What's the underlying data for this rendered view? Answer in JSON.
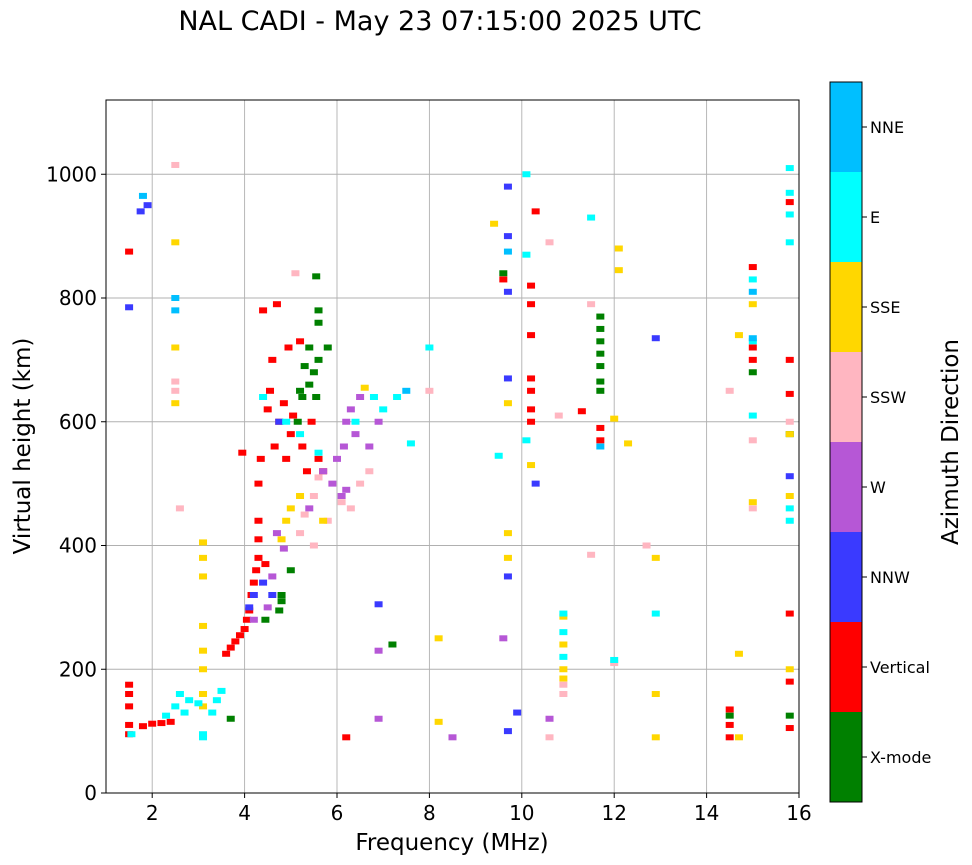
{
  "chart_data": {
    "type": "scatter",
    "title": "NAL CADI - May 23 07:15:00 2025 UTC",
    "xlabel": "Frequency (MHz)",
    "ylabel": "Virtual height (km)",
    "xlim": [
      1,
      16
    ],
    "ylim": [
      0,
      1120
    ],
    "xticks": [
      2,
      4,
      6,
      8,
      10,
      12,
      14,
      16
    ],
    "yticks": [
      0,
      200,
      400,
      600,
      800,
      1000
    ],
    "grid": true,
    "colorbar": {
      "label": "Azimuth Direction",
      "categories": [
        {
          "name": "X-mode",
          "color": "#008000"
        },
        {
          "name": "Vertical",
          "color": "#ff0000"
        },
        {
          "name": "NNW",
          "color": "#3a3aff"
        },
        {
          "name": "W",
          "color": "#b657d6"
        },
        {
          "name": "SSW",
          "color": "#ffb6c1"
        },
        {
          "name": "SSE",
          "color": "#ffd700"
        },
        {
          "name": "E",
          "color": "#00ffff"
        },
        {
          "name": "NNE",
          "color": "#00bfff"
        }
      ]
    },
    "series": [
      {
        "name": "X-mode",
        "color": "#008000",
        "points": [
          [
            3.7,
            120
          ],
          [
            4.45,
            280
          ],
          [
            4.75,
            295
          ],
          [
            4.8,
            310
          ],
          [
            4.8,
            320
          ],
          [
            5.0,
            360
          ],
          [
            5.25,
            640
          ],
          [
            5.3,
            690
          ],
          [
            5.4,
            660
          ],
          [
            5.5,
            680
          ],
          [
            5.55,
            640
          ],
          [
            5.6,
            700
          ],
          [
            5.6,
            760
          ],
          [
            5.6,
            780
          ],
          [
            5.55,
            835
          ],
          [
            5.8,
            720
          ],
          [
            5.4,
            720
          ],
          [
            5.15,
            600
          ],
          [
            5.2,
            650
          ],
          [
            11.7,
            650
          ],
          [
            11.7,
            665
          ],
          [
            11.7,
            690
          ],
          [
            11.7,
            710
          ],
          [
            11.7,
            730
          ],
          [
            11.7,
            750
          ],
          [
            11.7,
            770
          ],
          [
            14.5,
            125
          ],
          [
            15.8,
            125
          ],
          [
            15.8,
            580
          ],
          [
            15.0,
            680
          ],
          [
            9.6,
            840
          ],
          [
            7.2,
            240
          ]
        ]
      },
      {
        "name": "Vertical",
        "color": "#ff0000",
        "points": [
          [
            1.5,
            95
          ],
          [
            1.5,
            110
          ],
          [
            1.5,
            140
          ],
          [
            1.5,
            160
          ],
          [
            1.5,
            175
          ],
          [
            1.8,
            108
          ],
          [
            2.0,
            112
          ],
          [
            2.2,
            113
          ],
          [
            2.4,
            115
          ],
          [
            3.6,
            225
          ],
          [
            3.7,
            235
          ],
          [
            3.8,
            245
          ],
          [
            3.9,
            255
          ],
          [
            3.95,
            550
          ],
          [
            4.0,
            265
          ],
          [
            4.05,
            280
          ],
          [
            4.1,
            295
          ],
          [
            4.15,
            320
          ],
          [
            4.2,
            340
          ],
          [
            4.25,
            360
          ],
          [
            4.3,
            380
          ],
          [
            4.3,
            410
          ],
          [
            4.3,
            440
          ],
          [
            4.3,
            500
          ],
          [
            4.35,
            540
          ],
          [
            4.4,
            780
          ],
          [
            4.45,
            370
          ],
          [
            4.5,
            620
          ],
          [
            4.55,
            650
          ],
          [
            4.6,
            700
          ],
          [
            4.65,
            560
          ],
          [
            4.7,
            790
          ],
          [
            4.75,
            600
          ],
          [
            4.85,
            630
          ],
          [
            4.9,
            540
          ],
          [
            4.95,
            720
          ],
          [
            5.0,
            580
          ],
          [
            5.05,
            610
          ],
          [
            5.2,
            730
          ],
          [
            5.25,
            560
          ],
          [
            5.35,
            520
          ],
          [
            5.45,
            600
          ],
          [
            5.6,
            540
          ],
          [
            5.7,
            520
          ],
          [
            9.6,
            830
          ],
          [
            10.2,
            600
          ],
          [
            10.2,
            620
          ],
          [
            10.2,
            650
          ],
          [
            10.2,
            670
          ],
          [
            10.2,
            820
          ],
          [
            10.2,
            790
          ],
          [
            10.2,
            740
          ],
          [
            11.3,
            617
          ],
          [
            11.7,
            570
          ],
          [
            11.7,
            590
          ],
          [
            14.5,
            90
          ],
          [
            14.5,
            110
          ],
          [
            14.5,
            135
          ],
          [
            15.0,
            700
          ],
          [
            15.0,
            720
          ],
          [
            15.0,
            850
          ],
          [
            15.8,
            105
          ],
          [
            15.8,
            180
          ],
          [
            15.8,
            290
          ],
          [
            15.8,
            645
          ],
          [
            15.8,
            700
          ],
          [
            15.8,
            955
          ],
          [
            1.5,
            875
          ],
          [
            6.2,
            90
          ],
          [
            10.3,
            940
          ]
        ]
      },
      {
        "name": "NNW",
        "color": "#3a3aff",
        "points": [
          [
            1.5,
            785
          ],
          [
            1.75,
            940
          ],
          [
            1.9,
            950
          ],
          [
            4.1,
            300
          ],
          [
            4.2,
            320
          ],
          [
            4.4,
            340
          ],
          [
            4.6,
            320
          ],
          [
            4.75,
            600
          ],
          [
            6.9,
            305
          ],
          [
            9.7,
            900
          ],
          [
            9.7,
            980
          ],
          [
            9.7,
            810
          ],
          [
            9.7,
            670
          ],
          [
            9.7,
            350
          ],
          [
            9.7,
            100
          ],
          [
            10.3,
            500
          ],
          [
            12.9,
            735
          ],
          [
            15.8,
            512
          ],
          [
            9.9,
            130
          ]
        ]
      },
      {
        "name": "W",
        "color": "#b657d6",
        "points": [
          [
            4.2,
            280
          ],
          [
            4.5,
            300
          ],
          [
            4.6,
            350
          ],
          [
            4.7,
            420
          ],
          [
            4.85,
            395
          ],
          [
            5.4,
            460
          ],
          [
            5.7,
            520
          ],
          [
            5.9,
            500
          ],
          [
            6.0,
            540
          ],
          [
            6.1,
            480
          ],
          [
            6.15,
            560
          ],
          [
            6.2,
            600
          ],
          [
            6.3,
            620
          ],
          [
            6.4,
            580
          ],
          [
            6.5,
            640
          ],
          [
            6.7,
            560
          ],
          [
            6.9,
            600
          ],
          [
            6.9,
            120
          ],
          [
            6.9,
            230
          ],
          [
            6.2,
            490
          ],
          [
            8.5,
            90
          ],
          [
            10.6,
            120
          ],
          [
            9.6,
            250
          ]
        ]
      },
      {
        "name": "SSW",
        "color": "#ffb6c1",
        "points": [
          [
            2.5,
            1015
          ],
          [
            2.5,
            650
          ],
          [
            2.5,
            665
          ],
          [
            2.6,
            460
          ],
          [
            5.2,
            420
          ],
          [
            5.3,
            450
          ],
          [
            5.5,
            480
          ],
          [
            5.6,
            510
          ],
          [
            5.8,
            440
          ],
          [
            6.1,
            470
          ],
          [
            6.3,
            460
          ],
          [
            6.5,
            500
          ],
          [
            6.7,
            520
          ],
          [
            8.0,
            650
          ],
          [
            10.6,
            890
          ],
          [
            10.6,
            90
          ],
          [
            11.5,
            790
          ],
          [
            11.5,
            385
          ],
          [
            12.0,
            210
          ],
          [
            12.7,
            400
          ],
          [
            14.5,
            650
          ],
          [
            15.0,
            460
          ],
          [
            15.0,
            570
          ],
          [
            15.8,
            600
          ],
          [
            10.9,
            160
          ],
          [
            10.9,
            175
          ],
          [
            10.8,
            610
          ],
          [
            5.1,
            840
          ],
          [
            5.5,
            400
          ]
        ]
      },
      {
        "name": "SSE",
        "color": "#ffd700",
        "points": [
          [
            2.5,
            890
          ],
          [
            2.5,
            720
          ],
          [
            2.5,
            630
          ],
          [
            3.1,
            140
          ],
          [
            3.1,
            160
          ],
          [
            3.1,
            200
          ],
          [
            3.1,
            230
          ],
          [
            3.1,
            270
          ],
          [
            3.1,
            350
          ],
          [
            3.1,
            380
          ],
          [
            3.1,
            405
          ],
          [
            4.8,
            410
          ],
          [
            4.9,
            440
          ],
          [
            5.0,
            460
          ],
          [
            5.2,
            480
          ],
          [
            5.7,
            440
          ],
          [
            6.6,
            655
          ],
          [
            9.4,
            920
          ],
          [
            9.7,
            630
          ],
          [
            9.7,
            420
          ],
          [
            9.7,
            380
          ],
          [
            10.2,
            530
          ],
          [
            10.9,
            285
          ],
          [
            10.9,
            240
          ],
          [
            10.9,
            200
          ],
          [
            10.9,
            185
          ],
          [
            12.3,
            565
          ],
          [
            12.9,
            380
          ],
          [
            12.9,
            160
          ],
          [
            12.9,
            90
          ],
          [
            14.7,
            90
          ],
          [
            14.7,
            225
          ],
          [
            14.7,
            740
          ],
          [
            15.0,
            790
          ],
          [
            15.0,
            470
          ],
          [
            15.8,
            480
          ],
          [
            15.8,
            580
          ],
          [
            15.8,
            200
          ],
          [
            8.2,
            250
          ],
          [
            8.2,
            115
          ],
          [
            12.1,
            880
          ],
          [
            12.1,
            845
          ],
          [
            12.0,
            605
          ]
        ]
      },
      {
        "name": "E",
        "color": "#00ffff",
        "points": [
          [
            1.55,
            95
          ],
          [
            2.3,
            125
          ],
          [
            2.5,
            140
          ],
          [
            2.6,
            160
          ],
          [
            2.7,
            130
          ],
          [
            2.8,
            150
          ],
          [
            3.0,
            145
          ],
          [
            3.1,
            90
          ],
          [
            3.3,
            130
          ],
          [
            3.4,
            150
          ],
          [
            3.5,
            165
          ],
          [
            4.4,
            640
          ],
          [
            4.9,
            600
          ],
          [
            5.2,
            580
          ],
          [
            5.6,
            550
          ],
          [
            6.4,
            600
          ],
          [
            6.8,
            640
          ],
          [
            7.0,
            620
          ],
          [
            7.3,
            640
          ],
          [
            7.6,
            565
          ],
          [
            8.0,
            720
          ],
          [
            9.5,
            545
          ],
          [
            10.1,
            570
          ],
          [
            10.1,
            870
          ],
          [
            10.1,
            1000
          ],
          [
            10.9,
            220
          ],
          [
            10.9,
            260
          ],
          [
            10.9,
            290
          ],
          [
            11.5,
            930
          ],
          [
            12.0,
            215
          ],
          [
            12.9,
            290
          ],
          [
            15.0,
            610
          ],
          [
            15.0,
            730
          ],
          [
            15.0,
            830
          ],
          [
            15.8,
            440
          ],
          [
            15.8,
            460
          ],
          [
            15.8,
            890
          ],
          [
            15.8,
            935
          ],
          [
            15.8,
            970
          ],
          [
            15.8,
            1010
          ],
          [
            3.1,
            95
          ]
        ]
      },
      {
        "name": "NNE",
        "color": "#00bfff",
        "points": [
          [
            1.8,
            965
          ],
          [
            2.5,
            800
          ],
          [
            2.5,
            780
          ],
          [
            7.5,
            650
          ],
          [
            9.7,
            875
          ],
          [
            11.7,
            560
          ],
          [
            15.0,
            735
          ],
          [
            15.0,
            810
          ]
        ]
      }
    ]
  }
}
